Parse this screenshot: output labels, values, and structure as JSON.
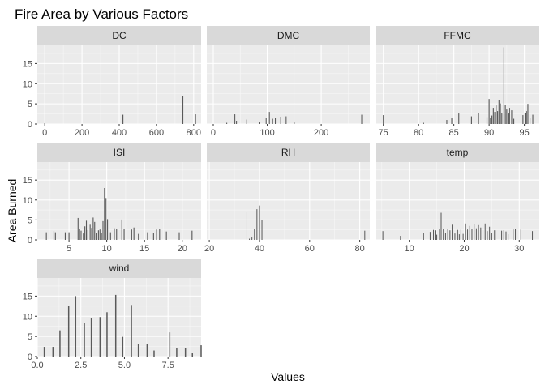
{
  "chart_data": {
    "type": "bar",
    "title": "Fire Area by Various Factors",
    "xlabel": "Values",
    "ylabel": "Area Burned",
    "ylim": [
      0,
      19.5
    ],
    "y_ticks": [
      0,
      5,
      10,
      15
    ],
    "grid": true,
    "facets": [
      {
        "name": "DC",
        "xlim": [
          -40,
          840
        ],
        "x_ticks": [
          0,
          200,
          400,
          600,
          800
        ],
        "bar_width": 5,
        "bars": [
          {
            "x": 0,
            "y": 0.2
          },
          {
            "x": 420,
            "y": 2.3
          },
          {
            "x": 742,
            "y": 6.9
          },
          {
            "x": 810,
            "y": 2.4
          }
        ]
      },
      {
        "name": "DMC",
        "xlim": [
          -12,
          290
        ],
        "x_ticks": [
          0,
          100,
          200
        ],
        "bar_width": 1.6,
        "bars": [
          {
            "x": 25,
            "y": 0.3
          },
          {
            "x": 40,
            "y": 2.4
          },
          {
            "x": 43,
            "y": 0.8
          },
          {
            "x": 62,
            "y": 1.1
          },
          {
            "x": 85,
            "y": 0.5
          },
          {
            "x": 98,
            "y": 1.6
          },
          {
            "x": 104,
            "y": 3.0
          },
          {
            "x": 110,
            "y": 1.3
          },
          {
            "x": 115,
            "y": 1.5
          },
          {
            "x": 125,
            "y": 1.8
          },
          {
            "x": 135,
            "y": 1.9
          },
          {
            "x": 150,
            "y": 0.4
          },
          {
            "x": 275,
            "y": 2.3
          }
        ]
      },
      {
        "name": "FFMC",
        "xlim": [
          74,
          97
        ],
        "x_ticks": [
          75,
          80,
          85,
          90,
          95
        ],
        "bar_width": 0.13,
        "bars": [
          {
            "x": 75.0,
            "y": 2.2
          },
          {
            "x": 80.7,
            "y": 0.3
          },
          {
            "x": 84.0,
            "y": 1.0
          },
          {
            "x": 84.7,
            "y": 1.4
          },
          {
            "x": 85.7,
            "y": 2.6
          },
          {
            "x": 87.5,
            "y": 1.9
          },
          {
            "x": 88.5,
            "y": 2.8
          },
          {
            "x": 89.7,
            "y": 1.7
          },
          {
            "x": 90.0,
            "y": 6.2
          },
          {
            "x": 90.2,
            "y": 1.5
          },
          {
            "x": 90.4,
            "y": 2.1
          },
          {
            "x": 90.6,
            "y": 4.0
          },
          {
            "x": 90.8,
            "y": 3.0
          },
          {
            "x": 91.0,
            "y": 4.6
          },
          {
            "x": 91.2,
            "y": 3.2
          },
          {
            "x": 91.4,
            "y": 6.0
          },
          {
            "x": 91.6,
            "y": 5.1
          },
          {
            "x": 91.8,
            "y": 2.8
          },
          {
            "x": 92.1,
            "y": 19.0
          },
          {
            "x": 92.3,
            "y": 4.8
          },
          {
            "x": 92.5,
            "y": 3.6
          },
          {
            "x": 92.7,
            "y": 2.6
          },
          {
            "x": 92.9,
            "y": 4.0
          },
          {
            "x": 93.2,
            "y": 3.4
          },
          {
            "x": 93.5,
            "y": 1.3
          },
          {
            "x": 94.8,
            "y": 2.2
          },
          {
            "x": 95.1,
            "y": 2.8
          },
          {
            "x": 95.3,
            "y": 3.2
          },
          {
            "x": 95.5,
            "y": 5.0
          },
          {
            "x": 95.8,
            "y": 1.4
          },
          {
            "x": 96.2,
            "y": 2.3
          }
        ]
      },
      {
        "name": "ISI",
        "xlim": [
          0.8,
          22.5
        ],
        "x_ticks": [
          5,
          10,
          15,
          20
        ],
        "bar_width": 0.12,
        "bars": [
          {
            "x": 2.0,
            "y": 1.9
          },
          {
            "x": 3.0,
            "y": 2.2
          },
          {
            "x": 3.2,
            "y": 1.9
          },
          {
            "x": 4.5,
            "y": 1.9
          },
          {
            "x": 5.0,
            "y": 1.9
          },
          {
            "x": 6.2,
            "y": 5.5
          },
          {
            "x": 6.4,
            "y": 2.8
          },
          {
            "x": 6.6,
            "y": 2.3
          },
          {
            "x": 6.9,
            "y": 1.6
          },
          {
            "x": 7.1,
            "y": 3.4
          },
          {
            "x": 7.3,
            "y": 4.8
          },
          {
            "x": 7.5,
            "y": 2.5
          },
          {
            "x": 7.8,
            "y": 3.8
          },
          {
            "x": 8.0,
            "y": 3.0
          },
          {
            "x": 8.2,
            "y": 5.6
          },
          {
            "x": 8.4,
            "y": 4.5
          },
          {
            "x": 8.6,
            "y": 1.8
          },
          {
            "x": 8.9,
            "y": 2.4
          },
          {
            "x": 9.1,
            "y": 2.6
          },
          {
            "x": 9.3,
            "y": 1.8
          },
          {
            "x": 9.5,
            "y": 4.7
          },
          {
            "x": 9.7,
            "y": 13.0
          },
          {
            "x": 9.9,
            "y": 10.5
          },
          {
            "x": 10.1,
            "y": 5.2
          },
          {
            "x": 10.5,
            "y": 1.9
          },
          {
            "x": 11.0,
            "y": 2.9
          },
          {
            "x": 11.3,
            "y": 2.7
          },
          {
            "x": 12.0,
            "y": 5.1
          },
          {
            "x": 12.3,
            "y": 2.7
          },
          {
            "x": 13.3,
            "y": 2.6
          },
          {
            "x": 13.6,
            "y": 3.1
          },
          {
            "x": 14.2,
            "y": 1.5
          },
          {
            "x": 15.4,
            "y": 1.9
          },
          {
            "x": 16.2,
            "y": 1.8
          },
          {
            "x": 16.6,
            "y": 2.6
          },
          {
            "x": 17.0,
            "y": 2.8
          },
          {
            "x": 17.9,
            "y": 2.1
          },
          {
            "x": 19.6,
            "y": 1.9
          },
          {
            "x": 21.3,
            "y": 2.3
          }
        ]
      },
      {
        "name": "RH",
        "xlim": [
          19,
          84
        ],
        "x_ticks": [
          20,
          40,
          60,
          80
        ],
        "bar_width": 0.3,
        "bars": [
          {
            "x": 35,
            "y": 7.0
          },
          {
            "x": 36,
            "y": 0.3
          },
          {
            "x": 37,
            "y": 0.6
          },
          {
            "x": 38,
            "y": 2.8
          },
          {
            "x": 39,
            "y": 7.7
          },
          {
            "x": 40,
            "y": 8.6
          },
          {
            "x": 41,
            "y": 5.0
          },
          {
            "x": 82,
            "y": 2.3
          }
        ]
      },
      {
        "name": "temp",
        "xlim": [
          4,
          33.5
        ],
        "x_ticks": [
          10,
          20,
          30
        ],
        "bar_width": 0.15,
        "bars": [
          {
            "x": 5.2,
            "y": 2.2
          },
          {
            "x": 8.4,
            "y": 1.0
          },
          {
            "x": 12.6,
            "y": 1.7
          },
          {
            "x": 13.8,
            "y": 2.0
          },
          {
            "x": 14.4,
            "y": 2.5
          },
          {
            "x": 14.7,
            "y": 2.4
          },
          {
            "x": 15.0,
            "y": 1.3
          },
          {
            "x": 15.5,
            "y": 2.7
          },
          {
            "x": 15.8,
            "y": 6.8
          },
          {
            "x": 16.2,
            "y": 2.8
          },
          {
            "x": 16.6,
            "y": 1.7
          },
          {
            "x": 17.0,
            "y": 2.8
          },
          {
            "x": 17.4,
            "y": 2.4
          },
          {
            "x": 17.8,
            "y": 3.8
          },
          {
            "x": 18.3,
            "y": 1.6
          },
          {
            "x": 18.8,
            "y": 2.5
          },
          {
            "x": 19.1,
            "y": 1.4
          },
          {
            "x": 19.4,
            "y": 2.6
          },
          {
            "x": 19.8,
            "y": 1.5
          },
          {
            "x": 20.2,
            "y": 4.1
          },
          {
            "x": 20.6,
            "y": 2.6
          },
          {
            "x": 21.0,
            "y": 3.5
          },
          {
            "x": 21.4,
            "y": 2.8
          },
          {
            "x": 21.8,
            "y": 3.9
          },
          {
            "x": 22.2,
            "y": 2.9
          },
          {
            "x": 22.6,
            "y": 3.7
          },
          {
            "x": 23.0,
            "y": 3.1
          },
          {
            "x": 23.4,
            "y": 2.4
          },
          {
            "x": 23.8,
            "y": 4.1
          },
          {
            "x": 24.2,
            "y": 2.2
          },
          {
            "x": 24.6,
            "y": 3.3
          },
          {
            "x": 25.0,
            "y": 1.8
          },
          {
            "x": 25.5,
            "y": 2.4
          },
          {
            "x": 26.8,
            "y": 2.3
          },
          {
            "x": 27.2,
            "y": 2.4
          },
          {
            "x": 27.6,
            "y": 2.1
          },
          {
            "x": 28.1,
            "y": 1.4
          },
          {
            "x": 28.9,
            "y": 2.7
          },
          {
            "x": 29.3,
            "y": 2.7
          },
          {
            "x": 30.3,
            "y": 2.6
          },
          {
            "x": 32.4,
            "y": 2.2
          }
        ]
      },
      {
        "name": "wind",
        "xlim": [
          0,
          9.4
        ],
        "x_ticks": [
          0.0,
          2.5,
          5.0,
          7.5
        ],
        "x_tick_labels": [
          "0.0",
          "2.5",
          "5.0",
          "7.5"
        ],
        "bar_width": 0.07,
        "bars": [
          {
            "x": 0.4,
            "y": 2.4
          },
          {
            "x": 0.9,
            "y": 2.4
          },
          {
            "x": 1.3,
            "y": 6.5
          },
          {
            "x": 1.8,
            "y": 12.5
          },
          {
            "x": 2.2,
            "y": 15.0
          },
          {
            "x": 2.7,
            "y": 8.3
          },
          {
            "x": 3.1,
            "y": 9.5
          },
          {
            "x": 3.6,
            "y": 9.8
          },
          {
            "x": 4.0,
            "y": 11.0
          },
          {
            "x": 4.5,
            "y": 15.3
          },
          {
            "x": 4.9,
            "y": 4.9
          },
          {
            "x": 5.4,
            "y": 12.8
          },
          {
            "x": 5.8,
            "y": 3.2
          },
          {
            "x": 6.3,
            "y": 3.1
          },
          {
            "x": 6.7,
            "y": 1.5
          },
          {
            "x": 7.6,
            "y": 6.0
          },
          {
            "x": 8.0,
            "y": 2.2
          },
          {
            "x": 8.5,
            "y": 2.2
          },
          {
            "x": 8.9,
            "y": 0.8
          },
          {
            "x": 9.4,
            "y": 2.8
          }
        ]
      }
    ]
  }
}
